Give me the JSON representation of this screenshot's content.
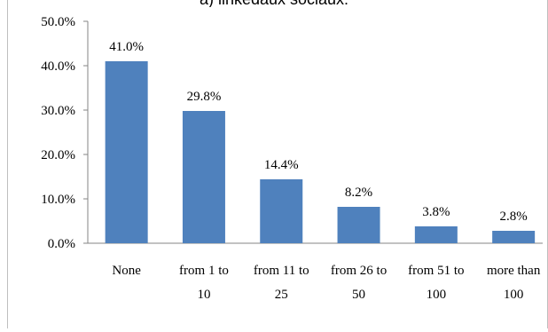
{
  "chart_data": {
    "type": "bar",
    "title": "a) linkedaux sociaux:",
    "categories": [
      [
        "None"
      ],
      [
        "from 1 to",
        "10"
      ],
      [
        "from 11 to",
        "25"
      ],
      [
        "from 26 to",
        "50"
      ],
      [
        "from 51 to",
        "100"
      ],
      [
        "more than",
        "100"
      ]
    ],
    "values": [
      41.0,
      29.8,
      14.4,
      8.2,
      3.8,
      2.8
    ],
    "data_labels": [
      "41.0%",
      "29.8%",
      "14.4%",
      "8.2%",
      "3.8%",
      "2.8%"
    ],
    "y_ticks": [
      "0.0%",
      "10.0%",
      "20.0%",
      "30.0%",
      "40.0%",
      "50.0%"
    ],
    "ylim": [
      0,
      50
    ],
    "grid": false,
    "legend": "none",
    "bar_color": "#4f81bd",
    "axis_color": "#868686"
  }
}
